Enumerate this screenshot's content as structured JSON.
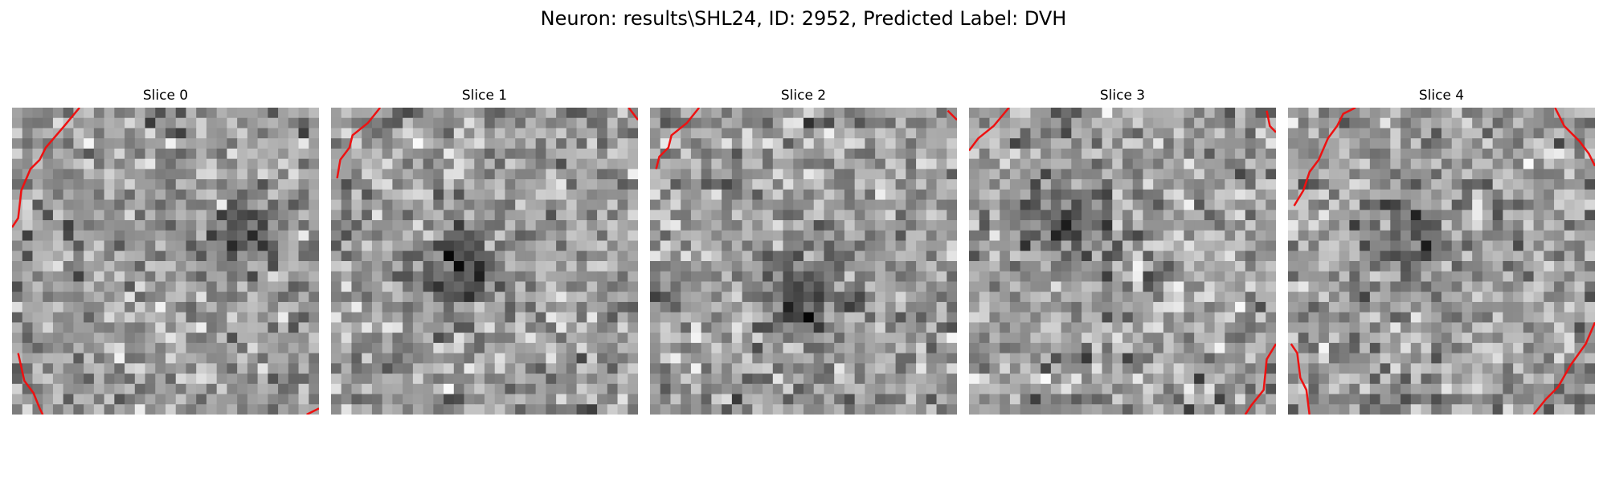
{
  "figure": {
    "suptitle": "Neuron: results\\SHL24, ID: 2952, Predicted Label: DVH"
  },
  "chart_data": {
    "type": "heatmap",
    "colormap": "gray",
    "outline_color": "#ee1111",
    "grid_size": 30,
    "panels": [
      {
        "title": "Slice 0",
        "dark_spots": [
          [
            0.72,
            0.42,
            0.22
          ]
        ],
        "outline_segments": 2
      },
      {
        "title": "Slice 1",
        "dark_spots": [
          [
            0.42,
            0.52,
            0.42
          ]
        ],
        "outline_segments": 2
      },
      {
        "title": "Slice 2",
        "dark_spots": [
          [
            0.52,
            0.62,
            0.38
          ]
        ],
        "outline_segments": 2
      },
      {
        "title": "Slice 3",
        "dark_spots": [
          [
            0.32,
            0.35,
            0.3
          ]
        ],
        "outline_segments": 2
      },
      {
        "title": "Slice 4",
        "dark_spots": [
          [
            0.42,
            0.45,
            0.25
          ]
        ],
        "outline_segments": 4
      }
    ]
  }
}
